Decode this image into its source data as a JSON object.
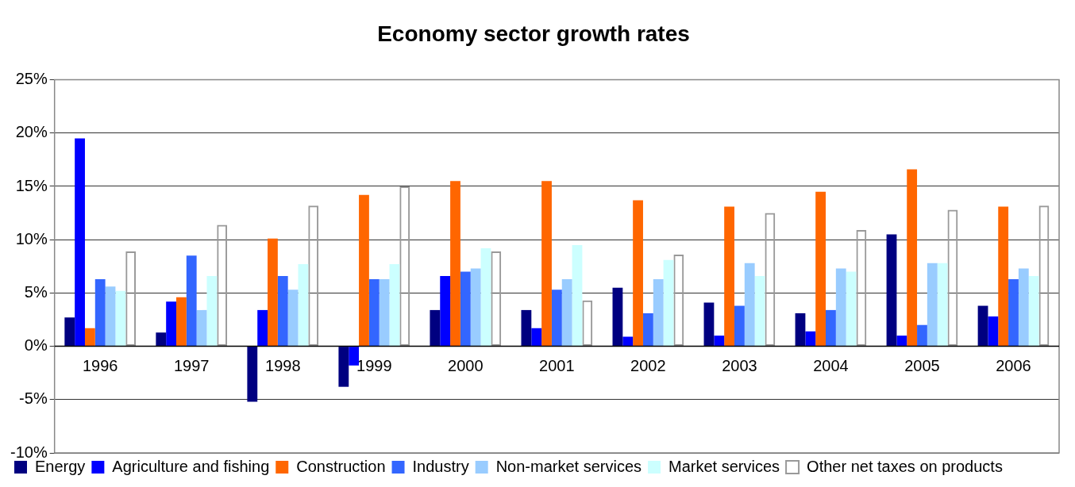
{
  "chart_data": {
    "type": "bar",
    "title": "Economy sector growth rates",
    "categories": [
      "1996",
      "1997",
      "1998",
      "1999",
      "2000",
      "2001",
      "2002",
      "2003",
      "2004",
      "2005",
      "2006"
    ],
    "series": [
      {
        "name": "Energy",
        "color": "#000080",
        "values": [
          2.7,
          1.3,
          -5.2,
          -3.8,
          3.4,
          3.4,
          5.5,
          4.1,
          3.1,
          10.5,
          3.8
        ]
      },
      {
        "name": "Agriculture and fishing",
        "color": "#0000ff",
        "values": [
          19.5,
          4.2,
          3.4,
          -1.8,
          6.6,
          1.7,
          0.9,
          1.0,
          1.4,
          1.0,
          2.8
        ]
      },
      {
        "name": "Construction",
        "color": "#ff6600",
        "values": [
          1.7,
          4.6,
          10.1,
          14.2,
          15.5,
          15.5,
          13.7,
          13.1,
          14.5,
          16.6,
          13.1
        ]
      },
      {
        "name": "Industry",
        "color": "#3366ff",
        "values": [
          6.3,
          8.5,
          6.6,
          6.3,
          7.0,
          5.3,
          3.1,
          3.8,
          3.4,
          2.0,
          6.3
        ]
      },
      {
        "name": "Non-market services",
        "color": "#99ccff",
        "values": [
          5.6,
          3.4,
          5.3,
          6.3,
          7.3,
          6.3,
          6.3,
          7.8,
          7.3,
          7.8,
          7.3
        ]
      },
      {
        "name": "Market services",
        "color": "#ccffff",
        "values": [
          5.2,
          6.6,
          7.7,
          7.7,
          9.2,
          9.5,
          8.1,
          6.6,
          7.0,
          7.8,
          6.6
        ]
      },
      {
        "name": "Other net taxes on products",
        "color": "#999999",
        "values": [
          8.9,
          11.4,
          13.2,
          15.0,
          8.9,
          4.3,
          8.6,
          12.5,
          10.9,
          12.8,
          13.2
        ]
      }
    ],
    "ylim": [
      -10,
      25
    ],
    "yticks": [
      {
        "value": -10,
        "label": "-10%"
      },
      {
        "value": -5,
        "label": "-5%"
      },
      {
        "value": 0,
        "label": "0%"
      },
      {
        "value": 5,
        "label": "5%"
      },
      {
        "value": 10,
        "label": "10%"
      },
      {
        "value": 15,
        "label": "15%"
      },
      {
        "value": 20,
        "label": "20%"
      },
      {
        "value": 25,
        "label": "25%"
      }
    ],
    "grid": "y",
    "legend": "bottom"
  }
}
